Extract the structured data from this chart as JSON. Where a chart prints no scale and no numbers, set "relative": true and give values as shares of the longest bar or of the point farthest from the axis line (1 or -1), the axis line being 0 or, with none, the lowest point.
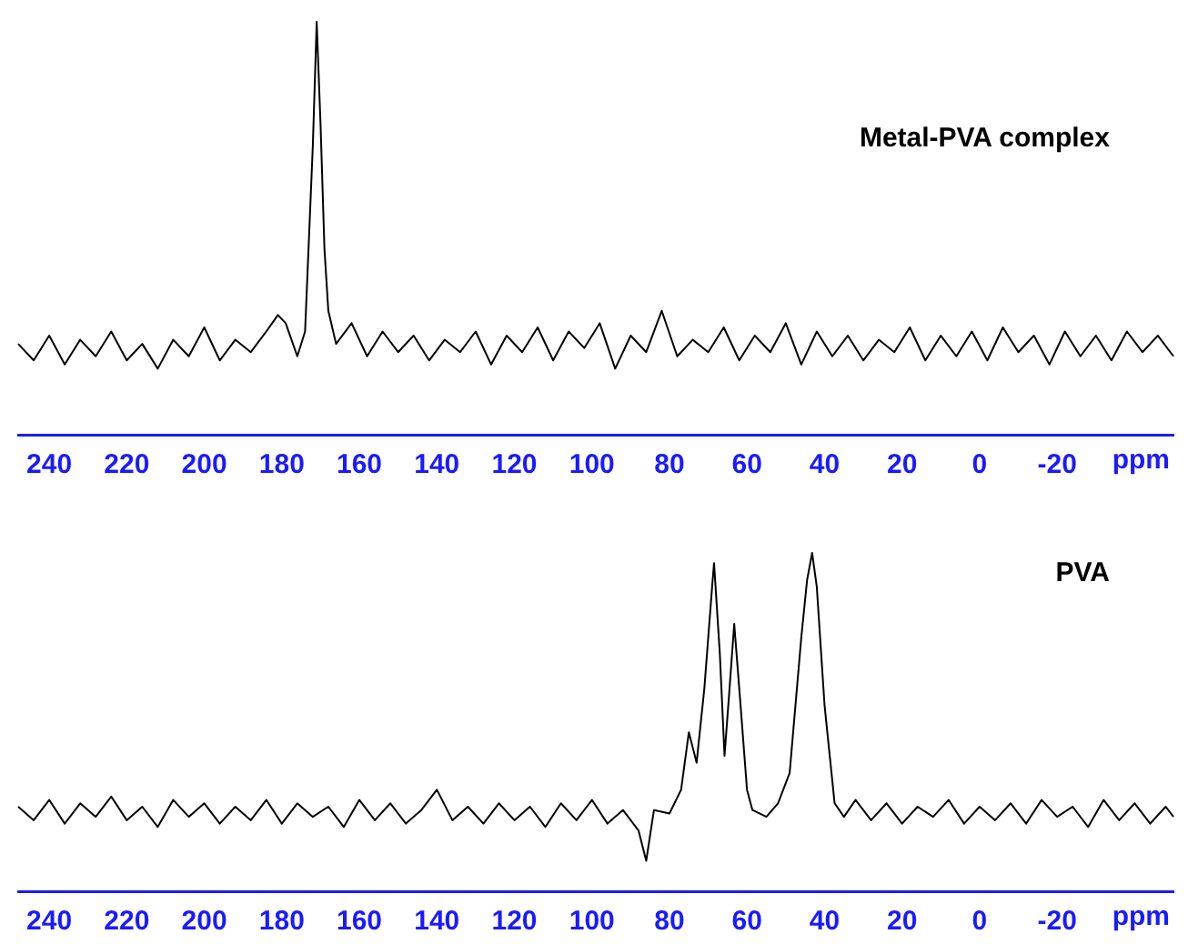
{
  "chart_data": [
    {
      "type": "line",
      "xlabel": "ppm",
      "xlim": [
        248,
        -50
      ],
      "xticks": [
        240,
        220,
        200,
        180,
        160,
        140,
        120,
        100,
        80,
        60,
        40,
        20,
        0,
        -20
      ],
      "relative": true,
      "grid": false,
      "marker": "none",
      "line_style": "solid",
      "series": [
        {
          "name": "Metal-PVA complex",
          "color": "#000000",
          "x": [
            248,
            244,
            240,
            236,
            232,
            228,
            224,
            220,
            216,
            212,
            208,
            204,
            200,
            196,
            192,
            188,
            184,
            181,
            179,
            176,
            174,
            172,
            171,
            170,
            169,
            168,
            166,
            162,
            158,
            154,
            150,
            146,
            142,
            138,
            134,
            130,
            126,
            122,
            118,
            114,
            110,
            106,
            102,
            98,
            94,
            90,
            86,
            82,
            78,
            74,
            70,
            66,
            62,
            58,
            54,
            50,
            46,
            42,
            38,
            34,
            30,
            26,
            22,
            18,
            14,
            10,
            6,
            2,
            -2,
            -6,
            -10,
            -14,
            -18,
            -22,
            -26,
            -30,
            -34,
            -38,
            -42,
            -46,
            -50
          ],
          "values": [
            0.22,
            0.18,
            0.24,
            0.17,
            0.23,
            0.19,
            0.25,
            0.18,
            0.22,
            0.16,
            0.23,
            0.19,
            0.26,
            0.18,
            0.23,
            0.2,
            0.25,
            0.29,
            0.27,
            0.19,
            0.25,
            0.7,
            1,
            0.75,
            0.45,
            0.3,
            0.22,
            0.27,
            0.19,
            0.25,
            0.2,
            0.24,
            0.18,
            0.23,
            0.2,
            0.25,
            0.17,
            0.24,
            0.2,
            0.26,
            0.18,
            0.25,
            0.21,
            0.27,
            0.16,
            0.24,
            0.2,
            0.3,
            0.19,
            0.23,
            0.2,
            0.26,
            0.18,
            0.24,
            0.2,
            0.27,
            0.17,
            0.25,
            0.19,
            0.24,
            0.18,
            0.23,
            0.2,
            0.26,
            0.18,
            0.24,
            0.19,
            0.25,
            0.18,
            0.26,
            0.2,
            0.24,
            0.17,
            0.25,
            0.19,
            0.24,
            0.18,
            0.25,
            0.2,
            0.24,
            0.19
          ]
        }
      ]
    },
    {
      "type": "line",
      "xlabel": "ppm",
      "xlim": [
        248,
        -50
      ],
      "xticks": [
        240,
        220,
        200,
        180,
        160,
        140,
        120,
        100,
        80,
        60,
        40,
        20,
        0,
        -20
      ],
      "relative": true,
      "grid": false,
      "marker": "none",
      "line_style": "solid",
      "series": [
        {
          "name": "PVA",
          "color": "#000000",
          "x": [
            248,
            244,
            240,
            236,
            232,
            228,
            224,
            220,
            216,
            212,
            208,
            204,
            200,
            196,
            192,
            188,
            184,
            180,
            176,
            172,
            168,
            164,
            160,
            156,
            152,
            148,
            144,
            140,
            136,
            132,
            128,
            124,
            120,
            116,
            112,
            108,
            104,
            100,
            96,
            92,
            88,
            86,
            84,
            80,
            77,
            75,
            73,
            71,
            69,
            68.5,
            67,
            65.8,
            64.5,
            63.3,
            62,
            60,
            58.6,
            55,
            52,
            49,
            46,
            44.5,
            43.2,
            42,
            40,
            37.4,
            35,
            32,
            28,
            24,
            20,
            16,
            12,
            8,
            4,
            0,
            -4,
            -8,
            -12,
            -16,
            -20,
            -24,
            -28,
            -32,
            -36,
            -40,
            -44,
            -48,
            -50
          ],
          "values": [
            0.25,
            0.21,
            0.27,
            0.2,
            0.26,
            0.22,
            0.28,
            0.21,
            0.25,
            0.19,
            0.27,
            0.22,
            0.26,
            0.2,
            0.25,
            0.21,
            0.27,
            0.2,
            0.26,
            0.22,
            0.25,
            0.19,
            0.27,
            0.21,
            0.26,
            0.2,
            0.24,
            0.3,
            0.21,
            0.25,
            0.2,
            0.26,
            0.21,
            0.25,
            0.19,
            0.26,
            0.21,
            0.27,
            0.2,
            0.24,
            0.18,
            0.09,
            0.24,
            0.23,
            0.3,
            0.47,
            0.38,
            0.6,
            0.9,
            0.97,
            0.7,
            0.4,
            0.6,
            0.79,
            0.6,
            0.3,
            0.24,
            0.22,
            0.26,
            0.35,
            0.75,
            0.92,
            1,
            0.9,
            0.55,
            0.26,
            0.22,
            0.27,
            0.21,
            0.26,
            0.2,
            0.25,
            0.22,
            0.27,
            0.2,
            0.25,
            0.21,
            0.26,
            0.2,
            0.27,
            0.22,
            0.25,
            0.19,
            0.27,
            0.21,
            0.26,
            0.2,
            0.25,
            0.22
          ]
        }
      ]
    }
  ]
}
